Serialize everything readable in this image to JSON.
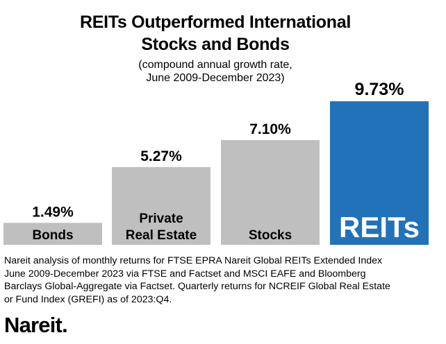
{
  "title_line1": "REITs Outperformed International",
  "title_line2": "Stocks and Bonds",
  "subtitle_line1": "(compound annual growth rate,",
  "subtitle_line2": "June 2009-December 2023)",
  "chart_data": {
    "type": "bar",
    "title": "REITs Outperformed International Stocks and Bonds",
    "subtitle": "(compound annual growth rate, June 2009-December 2023)",
    "categories": [
      [
        "Bonds"
      ],
      [
        "Private",
        "Real Estate"
      ],
      [
        "Stocks"
      ],
      [
        "REITs"
      ]
    ],
    "values": [
      1.49,
      5.27,
      7.1,
      9.73
    ],
    "value_labels": [
      "1.49%",
      "5.27%",
      "7.10%",
      "9.73%"
    ],
    "colors": [
      "#bfbfbf",
      "#bfbfbf",
      "#bfbfbf",
      "#2272b9"
    ],
    "label_colors": [
      "#000000",
      "#000000",
      "#000000",
      "#ffffff"
    ],
    "ylim": [
      0,
      9.73
    ],
    "grid": false,
    "legend": "none"
  },
  "note_lines": [
    "Nareit analysis of monthly returns for FTSE EPRA Nareit Global REITs Extended Index",
    "June 2009-December 2023 via FTSE and Factset and MSCI EAFE and Bloomberg",
    "Barclays Global-Aggregate via Factset. Quarterly returns for NCREIF Global Real Estate",
    "or Fund Index (GREFI) as of 2023:Q4."
  ],
  "logo_text": "Nareit."
}
